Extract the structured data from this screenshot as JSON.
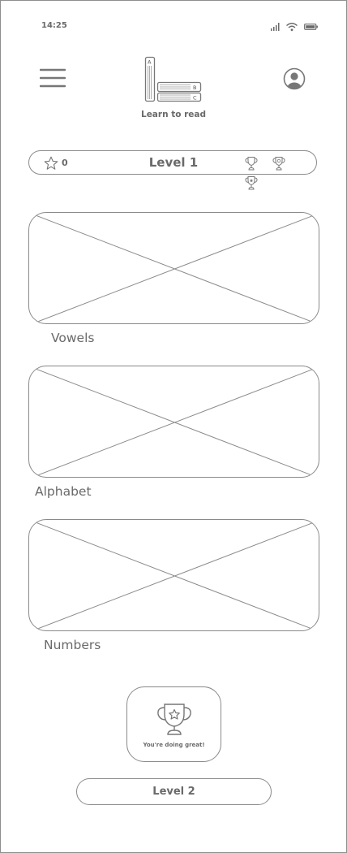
{
  "status_bar": {
    "time": "14:25",
    "icons": [
      "signal-icon",
      "wifi-icon",
      "battery-icon"
    ]
  },
  "header": {
    "app_name": "Learn to read",
    "logo_letters": [
      "A",
      "B",
      "C"
    ],
    "icons": {
      "menu": "hamburger-menu-icon",
      "profile": "user-profile-icon"
    }
  },
  "level_bar": {
    "stars": "0",
    "title": "Level 1",
    "trophy_count": 3
  },
  "cards": [
    {
      "label": "Vowels"
    },
    {
      "label": "Alphabet"
    },
    {
      "label": "Numbers"
    }
  ],
  "award": {
    "message": "You're doing great!"
  },
  "next_level": {
    "label": "Level 2"
  },
  "colors": {
    "stroke": "#8a8a8a",
    "text": "#6a6a6a",
    "background": "#ffffff"
  }
}
